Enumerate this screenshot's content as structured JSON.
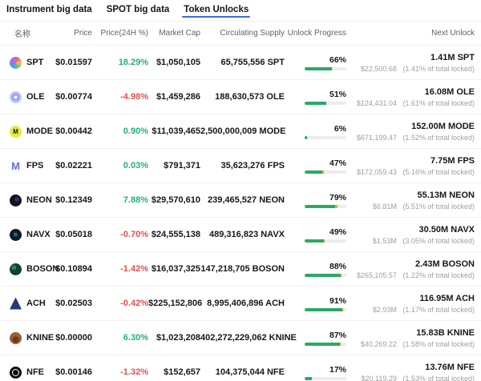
{
  "tabs": [
    {
      "label": "Instrument big data",
      "active": false
    },
    {
      "label": "SPOT big data",
      "active": false
    },
    {
      "label": "Token Unlocks",
      "active": true
    }
  ],
  "colors": {
    "up": "#23B176",
    "down": "#E5504A",
    "progress_fill": "#2BA966",
    "progress_next": "#F0A73A",
    "progress_track": "#ECECEC",
    "accent": "#3D6BE0"
  },
  "table": {
    "headers": {
      "name": "名称",
      "price": "Price",
      "change": "Price(24H %)",
      "market_cap": "Market Cap",
      "circulating_supply": "Circulating Supply",
      "unlock_progress": "Unlock Progress",
      "next_unlock": "Next Unlock"
    },
    "rows": [
      {
        "symbol": "SPT",
        "icon": "spt-logo",
        "icon_text": "",
        "price": "$0.01597",
        "change": "18.29%",
        "change_dir": "up",
        "market_cap": "$1,050,105",
        "circulating_supply": "65,755,556 SPT",
        "progress_label": "66%",
        "bar_green_pct": 66,
        "bar_orange_pct": 0,
        "next_amount": "1.41M SPT",
        "next_value": "$22,500.68",
        "next_note": "(1.41% of total locked)"
      },
      {
        "symbol": "OLE",
        "icon": "ole-logo",
        "icon_text": "",
        "price": "$0.00774",
        "change": "-4.98%",
        "change_dir": "down",
        "market_cap": "$1,459,286",
        "circulating_supply": "188,630,573 OLE",
        "progress_label": "51%",
        "bar_green_pct": 51,
        "bar_orange_pct": 0,
        "next_amount": "16.08M OLE",
        "next_value": "$124,431.04",
        "next_note": "(1.61% of total locked)"
      },
      {
        "symbol": "MODE",
        "icon": "mode-logo",
        "icon_text": "M",
        "price": "$0.00442",
        "change": "0.90%",
        "change_dir": "up",
        "market_cap": "$11,039,465",
        "circulating_supply": "2,500,000,009 MODE",
        "progress_label": "6%",
        "bar_green_pct": 6,
        "bar_orange_pct": 0,
        "next_amount": "152.00M MODE",
        "next_value": "$671,199.47",
        "next_note": "(1.52% of total locked)"
      },
      {
        "symbol": "FPS",
        "icon": "fps-logo",
        "icon_text": "M",
        "price": "$0.02221",
        "change": "0.03%",
        "change_dir": "up",
        "market_cap": "$791,371",
        "circulating_supply": "35,623,276 FPS",
        "progress_label": "47%",
        "bar_green_pct": 42,
        "bar_orange_pct": 5,
        "next_amount": "7.75M FPS",
        "next_value": "$172,059.43",
        "next_note": "(5.16% of total locked)"
      },
      {
        "symbol": "NEON",
        "icon": "neon-logo",
        "icon_text": "",
        "price": "$0.12349",
        "change": "7.88%",
        "change_dir": "up",
        "market_cap": "$29,570,610",
        "circulating_supply": "239,465,527 NEON",
        "progress_label": "79%",
        "bar_green_pct": 74,
        "bar_orange_pct": 5,
        "next_amount": "55.13M NEON",
        "next_value": "$6.81M",
        "next_note": "(5.51% of total locked)"
      },
      {
        "symbol": "NAVX",
        "icon": "navx-logo",
        "icon_text": "≈",
        "price": "$0.05018",
        "change": "-0.70%",
        "change_dir": "down",
        "market_cap": "$24,555,138",
        "circulating_supply": "489,316,823 NAVX",
        "progress_label": "49%",
        "bar_green_pct": 46,
        "bar_orange_pct": 3,
        "next_amount": "30.50M NAVX",
        "next_value": "$1.53M",
        "next_note": "(3.05% of total locked)"
      },
      {
        "symbol": "BOSON",
        "icon": "boson-logo",
        "icon_text": "",
        "price": "$0.10894",
        "change": "-1.42%",
        "change_dir": "down",
        "market_cap": "$16,037,325",
        "circulating_supply": "147,218,705 BOSON",
        "progress_label": "88%",
        "bar_green_pct": 87,
        "bar_orange_pct": 1,
        "next_amount": "2.43M BOSON",
        "next_value": "$265,105.57",
        "next_note": "(1.22% of total locked)"
      },
      {
        "symbol": "ACH",
        "icon": "ach-logo",
        "icon_text": "",
        "price": "$0.02503",
        "change": "-0.42%",
        "change_dir": "down",
        "market_cap": "$225,152,806",
        "circulating_supply": "8,995,406,896 ACH",
        "progress_label": "91%",
        "bar_green_pct": 90,
        "bar_orange_pct": 1,
        "next_amount": "116.95M ACH",
        "next_value": "$2.93M",
        "next_note": "(1.17% of total locked)"
      },
      {
        "symbol": "KNINE",
        "icon": "knine-logo",
        "icon_text": "",
        "price": "$0.00000",
        "change": "6.30%",
        "change_dir": "up",
        "market_cap": "$1,023,208",
        "circulating_supply": "402,272,229,062 KNINE",
        "progress_label": "87%",
        "bar_green_pct": 85,
        "bar_orange_pct": 2,
        "next_amount": "15.83B KNINE",
        "next_value": "$40,269.22",
        "next_note": "(1.58% of total locked)"
      },
      {
        "symbol": "NFE",
        "icon": "nfe-logo",
        "icon_text": "",
        "price": "$0.00146",
        "change": "-1.32%",
        "change_dir": "down",
        "market_cap": "$152,657",
        "circulating_supply": "104,375,044 NFE",
        "progress_label": "17%",
        "bar_green_pct": 17,
        "bar_orange_pct": 0,
        "next_amount": "13.76M NFE",
        "next_value": "$20,119.29",
        "next_note": "(1.53% of total locked)"
      }
    ]
  }
}
